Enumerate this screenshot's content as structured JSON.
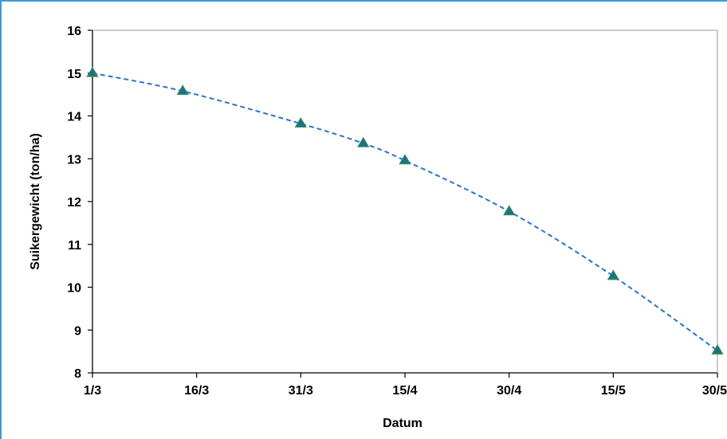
{
  "chart_data": {
    "type": "line",
    "title": "",
    "xlabel": "Datum",
    "ylabel": "Suikergewicht (ton/ha)",
    "x_tick_labels": [
      "1/3",
      "16/3",
      "31/3",
      "15/4",
      "30/4",
      "15/5",
      "30/5"
    ],
    "y_ticks": [
      8,
      9,
      10,
      11,
      12,
      13,
      14,
      15,
      16
    ],
    "ylim": [
      8,
      16
    ],
    "xlim_days": [
      0,
      90
    ],
    "grid": false,
    "legend": "none",
    "series": [
      {
        "marker": "triangle",
        "marker_color": "#1f6e8c",
        "marker_edge": "#2e8b57",
        "line_color": "#2a74c8",
        "line_style": "dashed",
        "points": [
          {
            "x": "1/3",
            "y": 15.0
          },
          {
            "x": "14/3",
            "y": 14.58
          },
          {
            "x": "31/3",
            "y": 13.82
          },
          {
            "x": "9/4",
            "y": 13.36
          },
          {
            "x": "15/4",
            "y": 12.96
          },
          {
            "x": "30/4",
            "y": 11.77
          },
          {
            "x": "15/5",
            "y": 10.26
          },
          {
            "x": "30/5",
            "y": 8.52
          }
        ]
      }
    ]
  }
}
